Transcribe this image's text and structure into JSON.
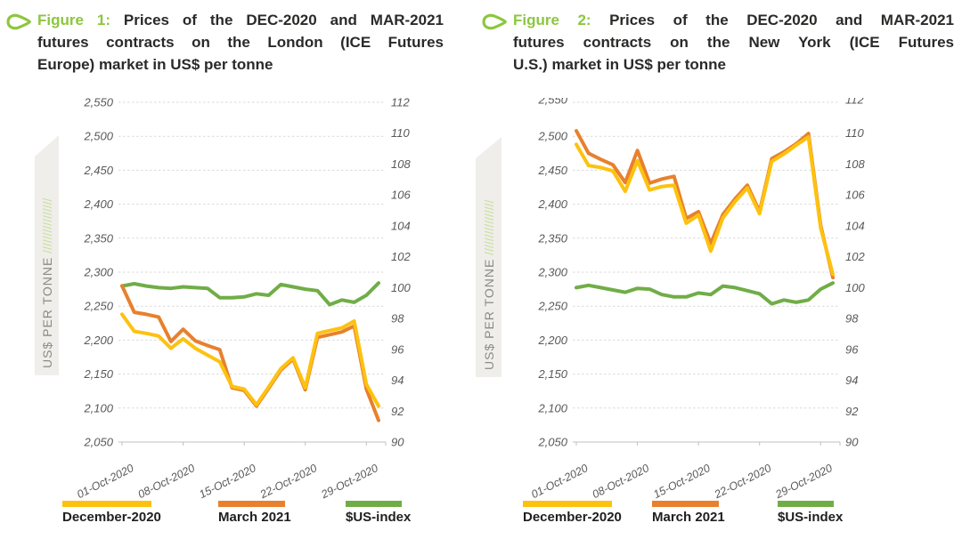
{
  "colors": {
    "figure_label_green": "#8cc63e",
    "title_text": "#2b2a29",
    "axis_text": "#595959",
    "gridline": "#d9d9d9",
    "axis_line": "#c0c0c0",
    "ribbon_background": "#efeeea",
    "ribbon_text": "#8b8b86",
    "ribbon_hatch": "#c9df9e",
    "series_yellow": "#fdc20f",
    "series_orange": "#e8802d",
    "series_green": "#70ad47"
  },
  "figures": [
    {
      "id": "figure-1",
      "title": {
        "label": "Figure 1:",
        "line1_rest": " Prices of the DEC-2020 and MAR-2021",
        "line2": "futures contracts on the London (ICE Futures",
        "line3": "Europe) market in US$ per tonne"
      },
      "ribbon": {
        "label": "US$ PER TONNE",
        "hatch": " ////////////////"
      }
    },
    {
      "id": "figure-2",
      "title": {
        "label": "Figure 2:",
        "line1_rest": " Prices of the DEC-2020 and MAR-2021",
        "line2": "futures contracts on the New York (ICE Futures",
        "line3": "U.S.) market in US$ per tonne"
      },
      "ribbon": {
        "label": "US$ PER TONNE",
        "hatch": " ////////////////"
      }
    }
  ],
  "chart_data": [
    {
      "type": "line",
      "title": "Figure 1: Prices of the DEC-2020 and MAR-2021 futures contracts on the London (ICE Futures Europe) market in US$ per tonne",
      "n_points": 22,
      "x_tick_labels": [
        "01-Oct-2020",
        "08-Oct-2020",
        "15-Oct-2020",
        "22-Oct-2020",
        "29-Oct-2020"
      ],
      "x_tick_indices": [
        0,
        5,
        10,
        15,
        20
      ],
      "left_axis": {
        "label": "US$ PER TONNE",
        "min": 2050,
        "max": 2550,
        "step": 50
      },
      "right_axis": {
        "label": "$US-index",
        "min": 90,
        "max": 112,
        "step": 2
      },
      "grid": "horizontal-dashed",
      "legend_position": "bottom",
      "series": [
        {
          "name": "December-2020",
          "color": "#fdc20f",
          "axis": "left",
          "values": [
            2238,
            2213,
            2210,
            2206,
            2188,
            2202,
            2188,
            2178,
            2168,
            2132,
            2128,
            2105,
            2131,
            2158,
            2174,
            2130,
            2210,
            2214,
            2218,
            2228,
            2135,
            2103
          ]
        },
        {
          "name": "March 2021",
          "color": "#e8802d",
          "axis": "left",
          "values": [
            2280,
            2241,
            2238,
            2234,
            2198,
            2216,
            2199,
            2192,
            2186,
            2130,
            2126,
            2103,
            2129,
            2156,
            2172,
            2127,
            2204,
            2208,
            2212,
            2221,
            2128,
            2082
          ]
        },
        {
          "name": "$US-index",
          "color": "#70ad47",
          "axis": "right",
          "values": [
            100.1,
            100.25,
            100.1,
            100.0,
            99.95,
            100.05,
            100.0,
            99.95,
            99.35,
            99.35,
            99.4,
            99.6,
            99.5,
            100.2,
            100.05,
            99.9,
            99.8,
            98.9,
            99.2,
            99.05,
            99.5,
            100.3
          ]
        }
      ]
    },
    {
      "type": "line",
      "title": "Figure 2: Prices of the DEC-2020 and MAR-2021 futures contracts on the New York (ICE Futures U.S.) market in US$ per tonne",
      "n_points": 22,
      "x_tick_labels": [
        "01-Oct-2020",
        "08-Oct-2020",
        "15-Oct-2020",
        "22-Oct-2020",
        "29-Oct-2020"
      ],
      "x_tick_indices": [
        0,
        5,
        10,
        15,
        20
      ],
      "left_axis": {
        "label": "US$ PER TONNE",
        "min": 2050,
        "max": 2550,
        "step": 50
      },
      "right_axis": {
        "label": "$US-index",
        "min": 90,
        "max": 112,
        "step": 2
      },
      "grid": "horizontal-dashed",
      "legend_position": "bottom",
      "series": [
        {
          "name": "December-2020",
          "color": "#fdc20f",
          "axis": "left",
          "values": [
            2488,
            2457,
            2454,
            2449,
            2419,
            2464,
            2421,
            2426,
            2428,
            2372,
            2384,
            2331,
            2380,
            2404,
            2424,
            2386,
            2463,
            2474,
            2487,
            2499,
            2365,
            2297
          ]
        },
        {
          "name": "March 2021",
          "color": "#e8802d",
          "axis": "left",
          "values": [
            2508,
            2475,
            2466,
            2458,
            2432,
            2479,
            2431,
            2437,
            2441,
            2379,
            2389,
            2342,
            2385,
            2408,
            2428,
            2389,
            2467,
            2477,
            2489,
            2504,
            2369,
            2292
          ]
        },
        {
          "name": "$US-index",
          "color": "#70ad47",
          "axis": "right",
          "values": [
            100.0,
            100.15,
            100.0,
            99.85,
            99.7,
            99.95,
            99.9,
            99.55,
            99.4,
            99.4,
            99.65,
            99.55,
            100.1,
            100.0,
            99.8,
            99.6,
            98.95,
            99.2,
            99.05,
            99.2,
            99.9,
            100.3
          ]
        }
      ]
    }
  ]
}
